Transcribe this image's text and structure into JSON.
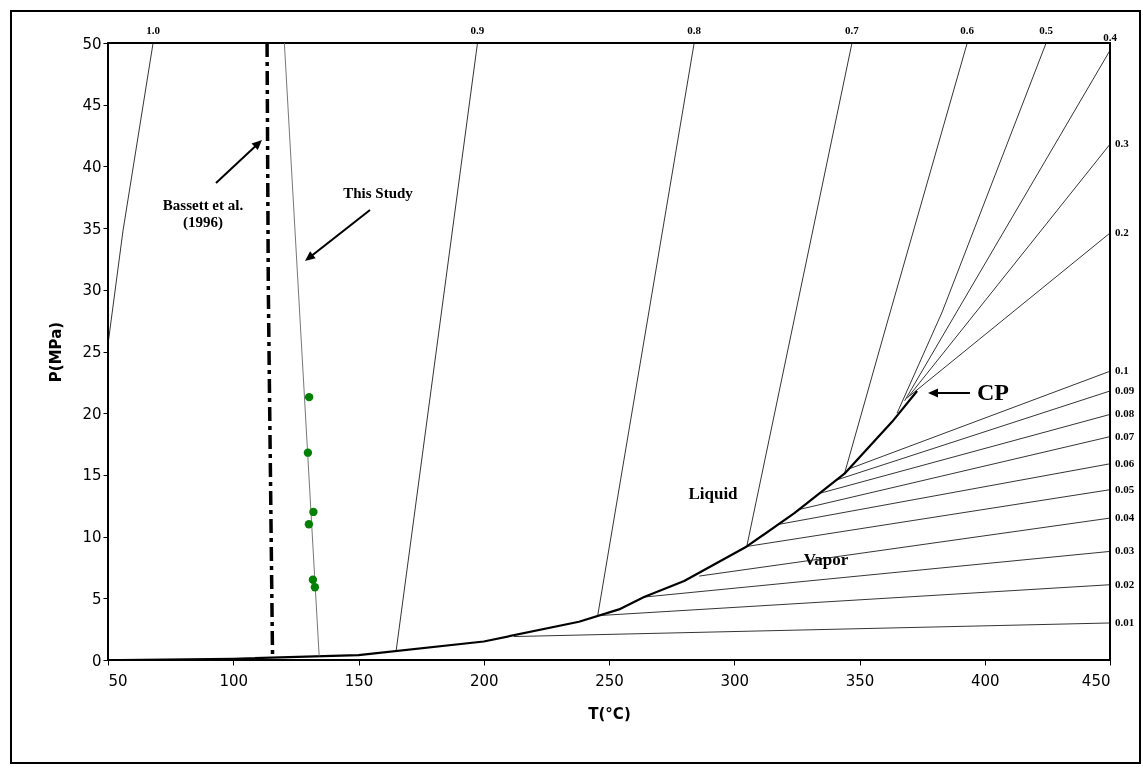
{
  "chart_data": {
    "type": "line",
    "xlabel": "T(°C)",
    "ylabel": "P(MPa)",
    "xlim": [
      50,
      450
    ],
    "xticks": [
      50,
      100,
      150,
      200,
      250,
      300,
      350,
      400,
      450
    ],
    "ylim": [
      0,
      50
    ],
    "yticks": [
      0,
      5,
      10,
      15,
      20,
      25,
      30,
      35,
      40,
      45,
      50
    ],
    "series": [
      {
        "color": "#000000",
        "x": [
          55,
          100,
          150,
          200,
          238,
          254,
          264,
          280,
          305,
          324,
          344,
          363,
          373
        ],
        "values": [
          0,
          0.1,
          0.4,
          1.5,
          3.1,
          4.1,
          5.1,
          6.4,
          9.2,
          11.9,
          15.1,
          19.3,
          21.8
        ]
      },
      {
        "color": "#000000",
        "line_style": "dashed",
        "x": [
          113.5,
          114,
          115.7
        ],
        "values": [
          50,
          30,
          0
        ]
      },
      {
        "color": "#666666",
        "x": [
          120.4,
          134.3
        ],
        "values": [
          50,
          0.3
        ]
      },
      {
        "type": "scatter",
        "marker": "circle",
        "color": "#008000",
        "x": [
          130.3,
          129.8,
          132,
          130.2,
          131.8,
          132.6
        ],
        "values": [
          21.3,
          16.8,
          12,
          11,
          6.5,
          5.9
        ]
      },
      {
        "name": "1.0",
        "color": "#000000",
        "x": [
          50,
          56,
          68
        ],
        "values": [
          25.6,
          34.8,
          50
        ]
      },
      {
        "name": "0.9",
        "color": "#000000",
        "x": [
          165,
          197.5
        ],
        "values": [
          0.7,
          50
        ]
      },
      {
        "name": "0.8",
        "color": "#000000",
        "x": [
          245.5,
          284
        ],
        "values": [
          3.6,
          50
        ]
      },
      {
        "name": "0.7",
        "color": "#000000",
        "x": [
          305,
          347
        ],
        "values": [
          9.2,
          50
        ]
      },
      {
        "name": "0.6",
        "color": "#000000",
        "x": [
          344,
          361,
          393
        ],
        "values": [
          15.1,
          27.3,
          50
        ]
      },
      {
        "name": "0.5",
        "color": "#000000",
        "x": [
          365,
          383,
          424.5
        ],
        "values": [
          20,
          28.2,
          50
        ]
      },
      {
        "name": "0.4",
        "color": "#000000",
        "x": [
          368,
          450
        ],
        "values": [
          21,
          49.4
        ]
      },
      {
        "name": "0.3",
        "color": "#000000",
        "x": [
          369,
          450
        ],
        "values": [
          21.2,
          41.8
        ]
      },
      {
        "name": "0.2",
        "color": "#000000",
        "x": [
          370,
          450
        ],
        "values": [
          21.4,
          34.6
        ]
      },
      {
        "name": "0.1",
        "color": "#000000",
        "x": [
          346,
          450
        ],
        "values": [
          15.5,
          23.4
        ]
      },
      {
        "name": "0.09",
        "color": "#000000",
        "x": [
          341,
          450
        ],
        "values": [
          14.6,
          21.8
        ]
      },
      {
        "name": "0.08",
        "color": "#000000",
        "x": [
          334,
          450
        ],
        "values": [
          13.5,
          19.9
        ]
      },
      {
        "name": "0.07",
        "color": "#000000",
        "x": [
          326,
          450
        ],
        "values": [
          12.2,
          18.1
        ]
      },
      {
        "name": "0.06",
        "color": "#000000",
        "x": [
          318,
          450
        ],
        "values": [
          11,
          15.9
        ]
      },
      {
        "name": "0.05",
        "color": "#000000",
        "x": [
          305,
          450
        ],
        "values": [
          9.2,
          13.8
        ]
      },
      {
        "name": "0.04",
        "color": "#000000",
        "x": [
          286,
          450
        ],
        "values": [
          6.8,
          11.5
        ]
      },
      {
        "name": "0.03",
        "color": "#000000",
        "x": [
          264,
          450
        ],
        "values": [
          5.1,
          8.8
        ]
      },
      {
        "name": "0.02",
        "color": "#000000",
        "x": [
          246,
          450
        ],
        "values": [
          3.6,
          6.1
        ]
      },
      {
        "name": "0.01",
        "color": "#000000",
        "x": [
          212,
          450
        ],
        "values": [
          1.9,
          3.0
        ]
      }
    ],
    "annotations": [
      "Bassett et al.\n(1996)",
      "This Study",
      "CP",
      "Liquid",
      "Vapor"
    ]
  }
}
